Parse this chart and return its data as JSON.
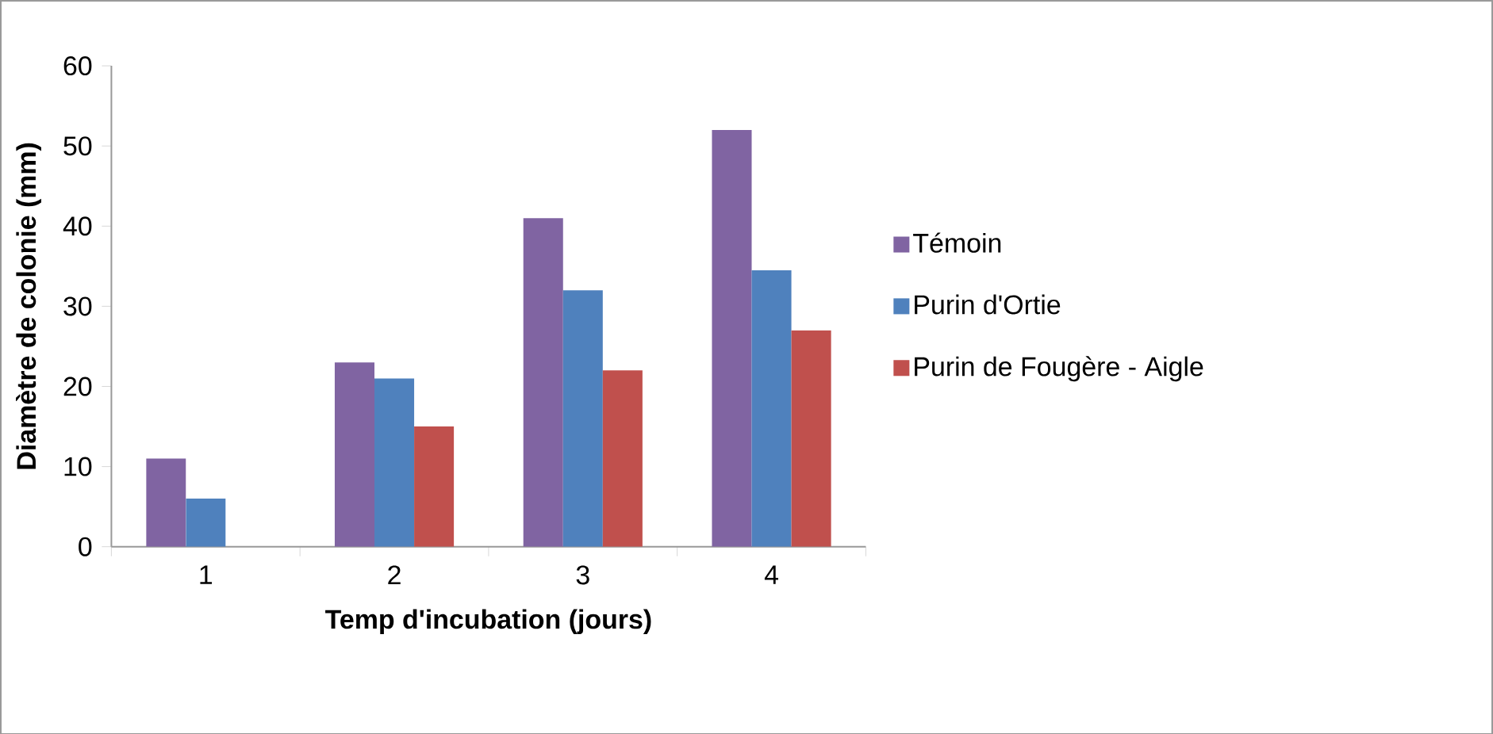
{
  "chart_data": {
    "type": "bar",
    "xlabel": "Temp d'incubation (jours)",
    "ylabel": "Diamètre de colonie (mm)",
    "categories": [
      "1",
      "2",
      "3",
      "4"
    ],
    "series": [
      {
        "name": "Témoin",
        "color": "#8064a2",
        "values": [
          11,
          23,
          41,
          52
        ]
      },
      {
        "name": "Purin d'Ortie",
        "color": "#4f81bd",
        "values": [
          6,
          21,
          32,
          34.5
        ]
      },
      {
        "name": "Purin de Fougère - Aigle",
        "color": "#c0504d",
        "values": [
          null,
          15,
          22,
          27
        ]
      }
    ],
    "ylim": [
      0,
      60
    ],
    "yticks": [
      0,
      10,
      20,
      30,
      40,
      50,
      60
    ],
    "legend": "right"
  }
}
